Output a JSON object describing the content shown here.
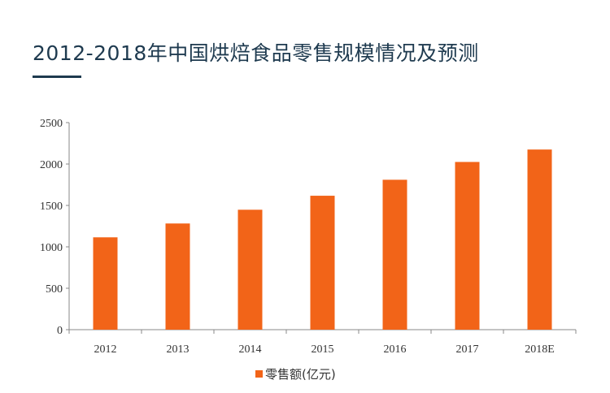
{
  "title": "2012-2018年中国烘焙食品零售规模情况及预测",
  "colors": {
    "bar": "#f26418",
    "title": "#1e3a4f",
    "axis": "#888888"
  },
  "chart_data": {
    "type": "bar",
    "title": "2012-2018年中国烘焙食品零售规模情况及预测",
    "categories": [
      "2012",
      "2013",
      "2014",
      "2015",
      "2016",
      "2017",
      "2018E"
    ],
    "series": [
      {
        "name": "零售额(亿元)",
        "values": [
          1115,
          1282,
          1448,
          1617,
          1810,
          2025,
          2175
        ]
      }
    ],
    "xlabel": "",
    "ylabel": "",
    "ylim": [
      0,
      2500
    ],
    "yticks": [
      "0",
      "500",
      "1000",
      "1500",
      "2000",
      "2500"
    ],
    "grid": false,
    "legend": "bottom-center"
  }
}
